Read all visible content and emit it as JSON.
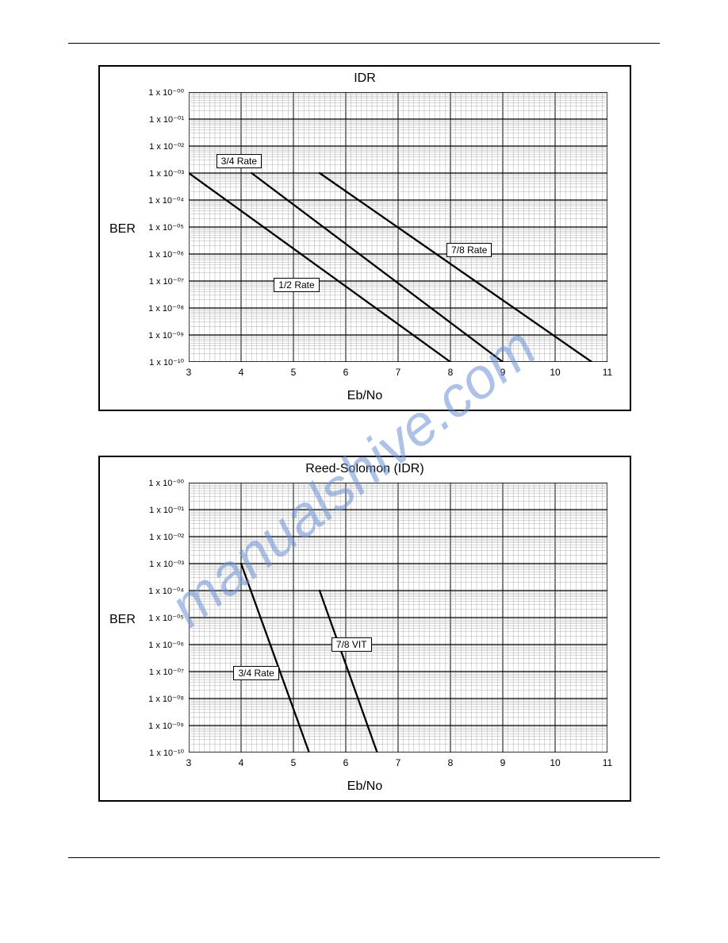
{
  "watermark_text": "manualshive.com",
  "watermark_color": "#6d90d4",
  "chart1": {
    "title": "IDR",
    "ylabel": "BER",
    "xlabel": "Eb/No",
    "xmin": 3,
    "xmax": 11,
    "xtick_step": 1,
    "ymin_exp": -10,
    "ymax_exp": 0,
    "ylog": true,
    "yticks": [
      "1 x 10⁻⁰⁰",
      "1 x 10⁻⁰¹",
      "1 x 10⁻⁰²",
      "1 x 10⁻⁰³",
      "1 x 10⁻⁰⁴",
      "1 x 10⁻⁰⁵",
      "1 x 10⁻⁰⁶",
      "1 x 10⁻⁰⁷",
      "1 x 10⁻⁰⁸",
      "1 x 10⁻⁰⁹",
      "1 x 10⁻¹⁰"
    ],
    "xticks": [
      "3",
      "4",
      "5",
      "6",
      "7",
      "8",
      "9",
      "10",
      "11"
    ],
    "series": [
      {
        "name": "1/2 Rate",
        "x": [
          3,
          8
        ],
        "y_exp": [
          -3,
          -10
        ],
        "label_x": 5.05,
        "label_y_exp": -7.15,
        "color": "#000",
        "width": 2.3
      },
      {
        "name": "3/4 Rate",
        "x": [
          4.2,
          9
        ],
        "y_exp": [
          -3,
          -10
        ],
        "label_x": 3.95,
        "label_y_exp": -2.55,
        "color": "#000",
        "width": 2.3
      },
      {
        "name": "7/8 Rate",
        "x": [
          5.5,
          10.7
        ],
        "y_exp": [
          -3,
          -10
        ],
        "label_x": 8.35,
        "label_y_exp": -5.85,
        "color": "#000",
        "width": 2.3
      }
    ],
    "bg": "#ffffff",
    "grid_major": "#000000",
    "grid_minor": "#9a9a9a",
    "title_fontsize": 16,
    "label_fontsize": 16,
    "tick_fontsize": 11
  },
  "chart2": {
    "title": "Reed-Solomon (IDR)",
    "ylabel": "BER",
    "xlabel": "Eb/No",
    "xmin": 3,
    "xmax": 11,
    "xtick_step": 1,
    "ymin_exp": -10,
    "ymax_exp": 0,
    "ylog": true,
    "yticks": [
      "1 x 10⁻⁰⁰",
      "1 x 10⁻⁰¹",
      "1 x 10⁻⁰²",
      "1 x 10⁻⁰³",
      "1 x 10⁻⁰⁴",
      "1 x 10⁻⁰⁵",
      "1 x 10⁻⁰⁶",
      "1 x 10⁻⁰⁷",
      "1 x 10⁻⁰⁸",
      "1 x 10⁻⁰⁹",
      "1 x 10⁻¹⁰"
    ],
    "xticks": [
      "3",
      "4",
      "5",
      "6",
      "7",
      "8",
      "9",
      "10",
      "11"
    ],
    "series": [
      {
        "name": "3/4 Rate",
        "x": [
          4,
          5.3
        ],
        "y_exp": [
          -3,
          -10
        ],
        "label_x": 4.28,
        "label_y_exp": -7.05,
        "color": "#000",
        "width": 2.3
      },
      {
        "name": "7/8 VIT",
        "x": [
          5.5,
          6.6
        ],
        "y_exp": [
          -4,
          -10
        ],
        "label_x": 6.15,
        "label_y_exp": -6.0,
        "color": "#000",
        "width": 2.3
      }
    ],
    "bg": "#ffffff",
    "grid_major": "#000000",
    "grid_minor": "#9a9a9a",
    "title_fontsize": 16,
    "label_fontsize": 16,
    "tick_fontsize": 11
  }
}
